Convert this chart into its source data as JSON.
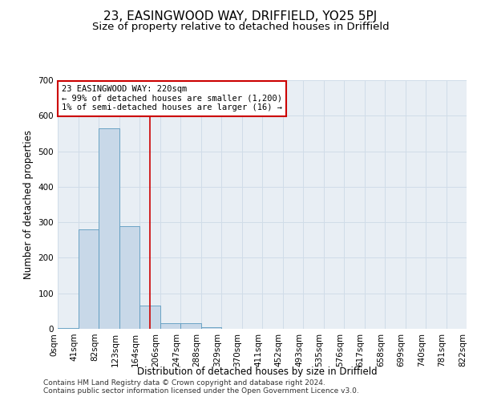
{
  "title": "23, EASINGWOOD WAY, DRIFFIELD, YO25 5PJ",
  "subtitle": "Size of property relative to detached houses in Driffield",
  "xlabel": "Distribution of detached houses by size in Driffield",
  "ylabel": "Number of detached properties",
  "bar_values": [
    2,
    280,
    565,
    290,
    65,
    15,
    15,
    5,
    0,
    0,
    0,
    0,
    0,
    0,
    0,
    0,
    0,
    0,
    0,
    0
  ],
  "bar_labels": [
    "0sqm",
    "41sqm",
    "82sqm",
    "123sqm",
    "164sqm",
    "206sqm",
    "247sqm",
    "288sqm",
    "329sqm",
    "370sqm",
    "411sqm",
    "452sqm",
    "493sqm",
    "535sqm",
    "576sqm",
    "617sqm",
    "658sqm",
    "699sqm",
    "740sqm",
    "781sqm",
    "822sqm"
  ],
  "bar_color": "#c8d8e8",
  "bar_edge_color": "#5a9abf",
  "grid_color": "#d0dce8",
  "background_color": "#e8eef4",
  "vline_x_index": 4.5,
  "vline_color": "#cc0000",
  "annotation_text": "23 EASINGWOOD WAY: 220sqm\n← 99% of detached houses are smaller (1,200)\n1% of semi-detached houses are larger (16) →",
  "annotation_box_color": "#ffffff",
  "annotation_box_edge_color": "#cc0000",
  "ylim": [
    0,
    700
  ],
  "yticks": [
    0,
    100,
    200,
    300,
    400,
    500,
    600,
    700
  ],
  "footer_line1": "Contains HM Land Registry data © Crown copyright and database right 2024.",
  "footer_line2": "Contains public sector information licensed under the Open Government Licence v3.0.",
  "title_fontsize": 11,
  "subtitle_fontsize": 9.5,
  "axis_label_fontsize": 8.5,
  "tick_fontsize": 7.5,
  "annotation_fontsize": 7.5,
  "footer_fontsize": 6.5
}
